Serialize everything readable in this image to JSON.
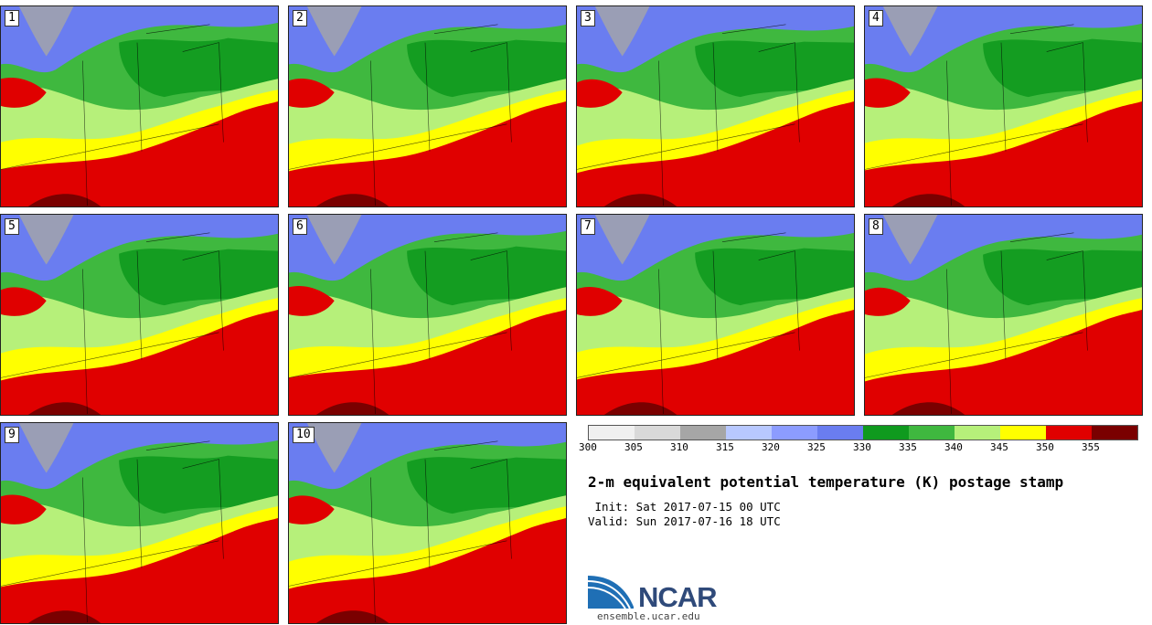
{
  "title": "2-m equivalent potential temperature (K) postage stamp",
  "init": " Init: Sat 2017-07-15 00 UTC",
  "valid": "Valid: Sun 2017-07-16 18 UTC",
  "colorbar": {
    "ticks": [
      "300",
      "305",
      "310",
      "315",
      "320",
      "325",
      "330",
      "335",
      "340",
      "345",
      "350",
      "355"
    ],
    "colors": [
      "#f0f0f0",
      "#d9d9d9",
      "#a6a6a6",
      "#b8c8ff",
      "#8c9cff",
      "#6a7df0",
      "#0f9a1e",
      "#3fb83f",
      "#b6f07a",
      "#ffff00",
      "#e00000",
      "#7a0000"
    ]
  },
  "members": [
    "1",
    "2",
    "3",
    "4",
    "5",
    "6",
    "7",
    "8",
    "9",
    "10"
  ],
  "logo": {
    "text": "NCAR",
    "url": "ensemble.ucar.edu"
  }
}
